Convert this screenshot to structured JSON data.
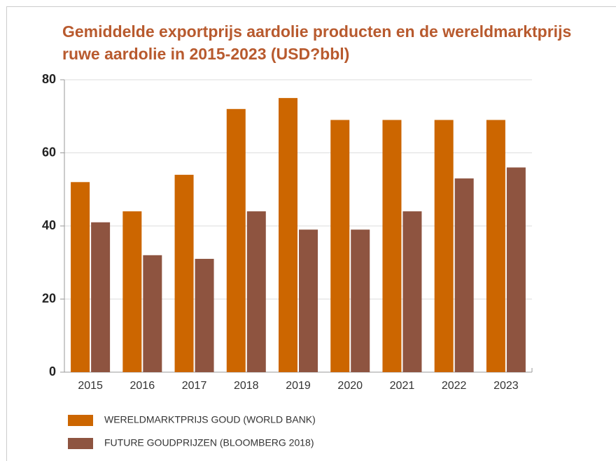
{
  "chart_data": {
    "type": "bar",
    "title": [
      "Gemiddelde exportprijs aardolie producten en de wereldmarktprijs",
      "ruwe aardolie in 2015-2023 (USD?bbl)"
    ],
    "categories": [
      "2015",
      "2016",
      "2017",
      "2018",
      "2019",
      "2020",
      "2021",
      "2022",
      "2023"
    ],
    "series": [
      {
        "name": "WERELDMARKTPRIJS GOUD (WORLD BANK)",
        "color": "#cc6600",
        "values": [
          52,
          44,
          54,
          72,
          75,
          69,
          69,
          69,
          69
        ]
      },
      {
        "name": "FUTURE GOUDPRIJZEN (BLOOMBERG 2018)",
        "color": "#8e5440",
        "values": [
          41,
          32,
          31,
          44,
          39,
          39,
          44,
          53,
          56
        ]
      }
    ],
    "ylim": [
      0,
      80
    ],
    "yticks": [
      0,
      20,
      40,
      60,
      80
    ],
    "grid": true
  }
}
